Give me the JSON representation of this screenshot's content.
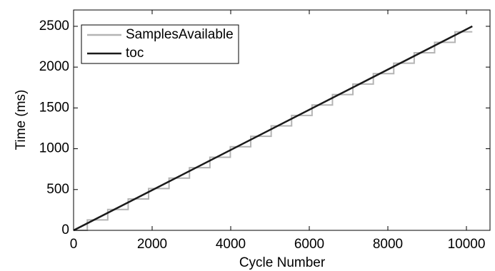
{
  "chart_data": {
    "type": "line",
    "xlabel": "Cycle Number",
    "ylabel": "Time (ms)",
    "xlim": [
      0,
      10600
    ],
    "ylim": [
      0,
      2700
    ],
    "xticks": [
      0,
      2000,
      4000,
      6000,
      8000,
      10000
    ],
    "yticks": [
      0,
      500,
      1000,
      1500,
      2000,
      2500
    ],
    "legend": "upper left",
    "series": [
      {
        "name": "SamplesAvailable",
        "color": "#b4b4b4",
        "x": [
          0,
          350,
          350,
          870,
          870,
          1390,
          1390,
          1910,
          1910,
          2430,
          2430,
          2950,
          2950,
          3470,
          3470,
          3990,
          3990,
          4510,
          4510,
          5030,
          5030,
          5550,
          5550,
          6070,
          6070,
          6590,
          6590,
          7110,
          7110,
          7630,
          7630,
          8150,
          8150,
          8670,
          8670,
          9190,
          9190,
          9710,
          9710,
          10150
        ],
        "values": [
          0,
          0,
          128,
          128,
          256,
          256,
          384,
          384,
          512,
          512,
          640,
          640,
          768,
          768,
          896,
          896,
          1024,
          1024,
          1152,
          1152,
          1280,
          1280,
          1408,
          1408,
          1536,
          1536,
          1664,
          1664,
          1792,
          1792,
          1920,
          1920,
          2048,
          2048,
          2176,
          2176,
          2304,
          2304,
          2432,
          2432
        ]
      },
      {
        "name": "toc",
        "color": "#1a1a1a",
        "x": [
          0,
          10150
        ],
        "values": [
          0,
          2500
        ]
      }
    ]
  }
}
